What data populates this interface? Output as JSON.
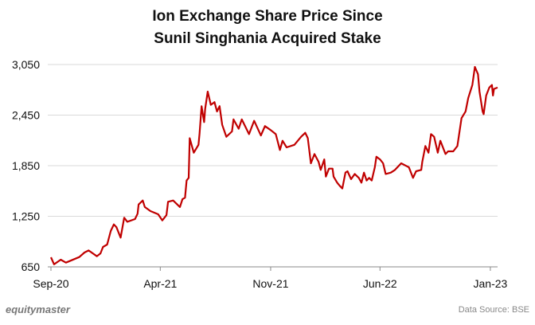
{
  "chart_data": {
    "type": "line",
    "title": [
      "Ion Exchange Share Price Since",
      "Sunil Singhania Acquired Stake"
    ],
    "xlabel": "",
    "ylabel": "",
    "ylim": [
      650,
      3050
    ],
    "yticks": [
      650,
      1250,
      1850,
      2450,
      3050
    ],
    "ytick_labels": [
      "650",
      "1,250",
      "1,850",
      "2,450",
      "3,050"
    ],
    "xticks": [
      "2020-09-01",
      "2021-04-01",
      "2021-11-01",
      "2022-06-01",
      "2023-01-01"
    ],
    "xtick_labels": [
      "Sep-20",
      "Apr-21",
      "Nov-21",
      "Jun-22",
      "Jan-23"
    ],
    "xlim": [
      "2020-09-01",
      "2023-01-15"
    ],
    "grid": "horizontal",
    "line_color": "#c00000",
    "series": [
      {
        "x": [
          "2020-09-01",
          "2020-09-07",
          "2020-09-20",
          "2020-09-30",
          "2020-10-26",
          "2020-11-05",
          "2020-11-13",
          "2020-11-29",
          "2020-12-06",
          "2020-12-11",
          "2020-12-19",
          "2020-12-26",
          "2021-01-01",
          "2021-01-06",
          "2021-01-14",
          "2021-01-21",
          "2021-01-27",
          "2021-02-11",
          "2021-02-16",
          "2021-02-18",
          "2021-02-26",
          "2021-03-02",
          "2021-03-13",
          "2021-03-28",
          "2021-04-05",
          "2021-04-13",
          "2021-04-16",
          "2021-04-26",
          "2021-05-09",
          "2021-05-14",
          "2021-05-19",
          "2021-05-22",
          "2021-05-26",
          "2021-05-28",
          "2021-06-05",
          "2021-06-14",
          "2021-06-16",
          "2021-06-20",
          "2021-06-25",
          "2021-06-27",
          "2021-07-02",
          "2021-07-08",
          "2021-07-15",
          "2021-07-20",
          "2021-07-25",
          "2021-07-30",
          "2021-08-07",
          "2021-08-18",
          "2021-08-21",
          "2021-08-31",
          "2021-09-06",
          "2021-09-20",
          "2021-09-30",
          "2021-10-13",
          "2021-10-21",
          "2021-11-01",
          "2021-11-11",
          "2021-11-19",
          "2021-11-24",
          "2021-12-02",
          "2021-12-17",
          "2021-12-30",
          "2022-01-07",
          "2022-01-12",
          "2022-01-18",
          "2022-01-25",
          "2022-02-02",
          "2022-02-06",
          "2022-02-13",
          "2022-02-16",
          "2022-02-22",
          "2022-03-01",
          "2022-03-03",
          "2022-03-10",
          "2022-03-15",
          "2022-03-20",
          "2022-03-26",
          "2022-03-30",
          "2022-04-06",
          "2022-04-13",
          "2022-04-21",
          "2022-04-26",
          "2022-05-01",
          "2022-05-06",
          "2022-05-11",
          "2022-05-16",
          "2022-05-22",
          "2022-05-25",
          "2022-06-01",
          "2022-06-07",
          "2022-06-12",
          "2022-06-22",
          "2022-06-30",
          "2022-07-12",
          "2022-07-22",
          "2022-07-27",
          "2022-08-04",
          "2022-08-10",
          "2022-08-20",
          "2022-08-22",
          "2022-08-28",
          "2022-09-03",
          "2022-09-08",
          "2022-09-14",
          "2022-09-21",
          "2022-09-26",
          "2022-10-06",
          "2022-10-11",
          "2022-10-21",
          "2022-10-29",
          "2022-11-06",
          "2022-11-14",
          "2022-11-19",
          "2022-11-27",
          "2022-12-02",
          "2022-12-08",
          "2022-12-11",
          "2022-12-17",
          "2022-12-19",
          "2022-12-24",
          "2022-12-30",
          "2023-01-04",
          "2023-01-06",
          "2023-01-08",
          "2023-01-15"
        ],
        "y": [
          763,
          680,
          735,
          700,
          766,
          820,
          845,
          776,
          810,
          886,
          915,
          1075,
          1154,
          1120,
          997,
          1233,
          1185,
          1217,
          1280,
          1390,
          1437,
          1360,
          1311,
          1274,
          1201,
          1264,
          1422,
          1437,
          1360,
          1453,
          1470,
          1674,
          1705,
          2176,
          2004,
          2098,
          2224,
          2556,
          2367,
          2525,
          2729,
          2572,
          2604,
          2493,
          2556,
          2335,
          2193,
          2256,
          2399,
          2288,
          2399,
          2224,
          2383,
          2208,
          2320,
          2272,
          2224,
          2036,
          2146,
          2067,
          2098,
          2193,
          2240,
          2177,
          1878,
          1988,
          1894,
          1800,
          1925,
          1721,
          1815,
          1815,
          1721,
          1649,
          1611,
          1580,
          1768,
          1784,
          1690,
          1752,
          1705,
          1649,
          1768,
          1674,
          1705,
          1674,
          1831,
          1957,
          1925,
          1878,
          1752,
          1768,
          1800,
          1878,
          1847,
          1831,
          1705,
          1784,
          1800,
          1894,
          2083,
          2004,
          2224,
          2193,
          2004,
          2146,
          1988,
          2020,
          2020,
          2083,
          2414,
          2493,
          2651,
          2807,
          3022,
          2935,
          2729,
          2493,
          2461,
          2682,
          2777,
          2807,
          2682,
          2761,
          2777
        ]
      }
    ]
  },
  "footer": {
    "logo": "equitymaster",
    "source": "Data Source: BSE"
  }
}
